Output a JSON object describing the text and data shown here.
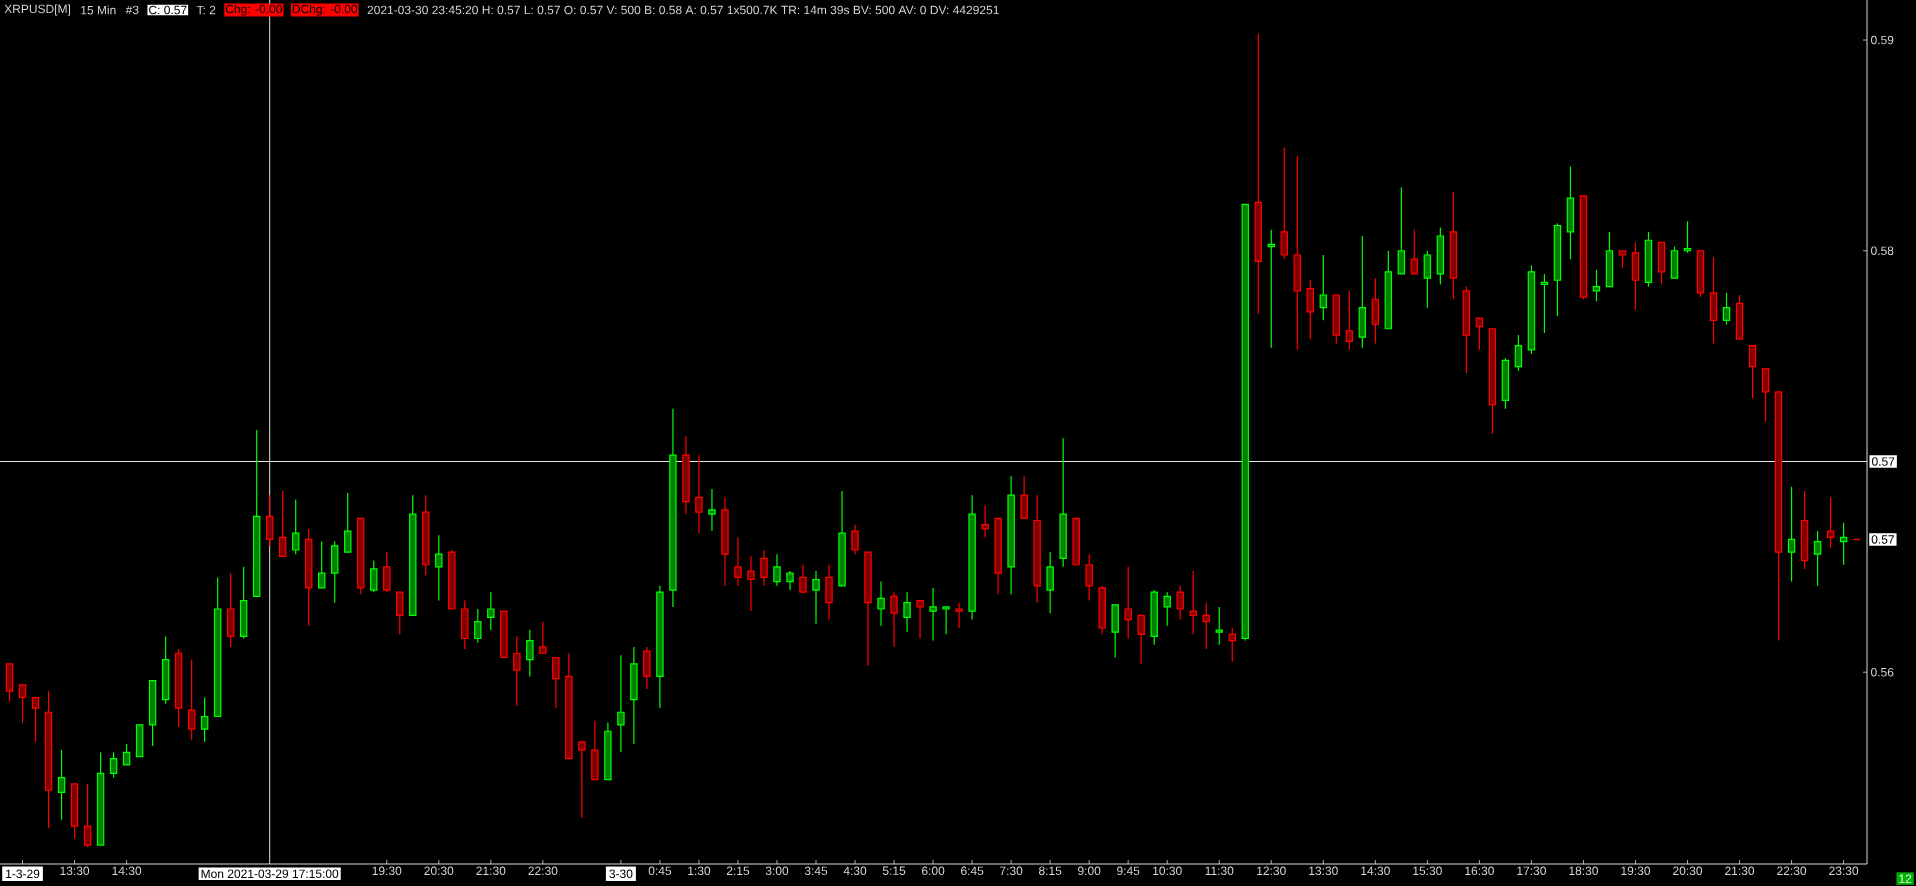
{
  "chart_data": {
    "type": "candlestick",
    "title": "XRPUSD[M]",
    "annotations": [
      "15 Min",
      "#3",
      "C: 0.57",
      "T: 2",
      "Chg: -0.00",
      "DChg: -0.00",
      "2021-03-30 23:45:20 H: 0.57 L: 0.57 O: 0.57 V: 500 B: 0.58 A: 0.57 1x500.7K TR: 14m 39s BV: 500 AV: 0 DV: 4429251",
      "12",
      {
        "text": "0.57",
        "x": "2021-03-30T23:45",
        "y": 0.5663
      }
    ],
    "x": [
      "2021-03-29T12:15",
      "2021-03-29T12:30",
      "2021-03-29T12:45",
      "2021-03-29T13:00",
      "2021-03-29T13:15",
      "2021-03-29T13:30",
      "2021-03-29T13:45",
      "2021-03-29T14:00",
      "2021-03-29T14:15",
      "2021-03-29T14:30",
      "2021-03-29T14:45",
      "2021-03-29T15:00",
      "2021-03-29T15:15",
      "2021-03-29T15:30",
      "2021-03-29T15:45",
      "2021-03-29T16:00",
      "2021-03-29T16:15",
      "2021-03-29T16:30",
      "2021-03-29T16:45",
      "2021-03-29T17:00",
      "2021-03-29T17:15",
      "2021-03-29T17:30",
      "2021-03-29T17:45",
      "2021-03-29T18:00",
      "2021-03-29T18:15",
      "2021-03-29T18:30",
      "2021-03-29T18:45",
      "2021-03-29T19:00",
      "2021-03-29T19:15",
      "2021-03-29T19:30",
      "2021-03-29T19:45",
      "2021-03-29T20:00",
      "2021-03-29T20:15",
      "2021-03-29T20:30",
      "2021-03-29T20:45",
      "2021-03-29T21:00",
      "2021-03-29T21:15",
      "2021-03-29T21:30",
      "2021-03-29T21:45",
      "2021-03-29T22:00",
      "2021-03-29T22:15",
      "2021-03-29T22:30",
      "2021-03-29T22:45",
      "2021-03-29T23:00",
      "2021-03-29T23:15",
      "2021-03-29T23:30",
      "2021-03-29T23:45",
      "2021-03-30T00:00",
      "2021-03-30T00:15",
      "2021-03-30T00:30",
      "2021-03-30T00:45",
      "2021-03-30T01:00",
      "2021-03-30T01:15",
      "2021-03-30T01:30",
      "2021-03-30T01:45",
      "2021-03-30T02:00",
      "2021-03-30T02:15",
      "2021-03-30T02:30",
      "2021-03-30T02:45",
      "2021-03-30T03:00",
      "2021-03-30T03:15",
      "2021-03-30T03:30",
      "2021-03-30T03:45",
      "2021-03-30T04:00",
      "2021-03-30T04:15",
      "2021-03-30T04:30",
      "2021-03-30T04:45",
      "2021-03-30T05:00",
      "2021-03-30T05:15",
      "2021-03-30T05:30",
      "2021-03-30T05:45",
      "2021-03-30T06:00",
      "2021-03-30T06:15",
      "2021-03-30T06:30",
      "2021-03-30T06:45",
      "2021-03-30T07:00",
      "2021-03-30T07:15",
      "2021-03-30T07:30",
      "2021-03-30T07:45",
      "2021-03-30T08:00",
      "2021-03-30T08:15",
      "2021-03-30T08:30",
      "2021-03-30T08:45",
      "2021-03-30T09:00",
      "2021-03-30T09:15",
      "2021-03-30T09:30",
      "2021-03-30T09:45",
      "2021-03-30T10:00",
      "2021-03-30T10:15",
      "2021-03-30T10:30",
      "2021-03-30T10:45",
      "2021-03-30T11:00",
      "2021-03-30T11:15",
      "2021-03-30T11:30",
      "2021-03-30T11:45",
      "2021-03-30T12:00",
      "2021-03-30T12:15",
      "2021-03-30T12:30",
      "2021-03-30T12:45",
      "2021-03-30T13:00",
      "2021-03-30T13:15",
      "2021-03-30T13:30",
      "2021-03-30T13:45",
      "2021-03-30T14:00",
      "2021-03-30T14:15",
      "2021-03-30T14:30",
      "2021-03-30T14:45",
      "2021-03-30T15:00",
      "2021-03-30T15:15",
      "2021-03-30T15:30",
      "2021-03-30T15:45",
      "2021-03-30T16:00",
      "2021-03-30T16:15",
      "2021-03-30T16:30",
      "2021-03-30T16:45",
      "2021-03-30T17:00",
      "2021-03-30T17:15",
      "2021-03-30T17:30",
      "2021-03-30T17:45",
      "2021-03-30T18:00",
      "2021-03-30T18:15",
      "2021-03-30T18:30",
      "2021-03-30T18:45",
      "2021-03-30T19:00",
      "2021-03-30T19:15",
      "2021-03-30T19:30",
      "2021-03-30T19:45",
      "2021-03-30T20:00",
      "2021-03-30T20:15",
      "2021-03-30T20:30",
      "2021-03-30T20:45",
      "2021-03-30T21:00",
      "2021-03-30T21:15",
      "2021-03-30T21:30",
      "2021-03-30T21:45",
      "2021-03-30T22:00",
      "2021-03-30T22:15",
      "2021-03-30T22:30",
      "2021-03-30T22:45",
      "2021-03-30T23:00",
      "2021-03-30T23:15",
      "2021-03-30T23:30",
      "2021-03-30T23:45"
    ],
    "ohlc": [
      [
        0.5604,
        0.5604,
        0.5586,
        0.5591
      ],
      [
        0.5594,
        0.5594,
        0.5576,
        0.5588
      ],
      [
        0.5588,
        0.5588,
        0.5567,
        0.5583
      ],
      [
        0.5581,
        0.5591,
        0.5526,
        0.5544
      ],
      [
        0.5543,
        0.5563,
        0.553,
        0.555
      ],
      [
        0.5547,
        0.5547,
        0.5521,
        0.5527
      ],
      [
        0.5527,
        0.5547,
        0.5517,
        0.5518
      ],
      [
        0.5518,
        0.5562,
        0.5518,
        0.5552
      ],
      [
        0.5552,
        0.5562,
        0.555,
        0.5559
      ],
      [
        0.5556,
        0.5566,
        0.5556,
        0.5562
      ],
      [
        0.556,
        0.5575,
        0.556,
        0.5575
      ],
      [
        0.5575,
        0.5596,
        0.5565,
        0.5596
      ],
      [
        0.5587,
        0.5617,
        0.5585,
        0.5606
      ],
      [
        0.5609,
        0.5611,
        0.5574,
        0.5583
      ],
      [
        0.5582,
        0.5606,
        0.5568,
        0.5573
      ],
      [
        0.5573,
        0.5588,
        0.5567,
        0.5579
      ],
      [
        0.5579,
        0.5645,
        0.5579,
        0.563
      ],
      [
        0.563,
        0.5647,
        0.5612,
        0.5617
      ],
      [
        0.5617,
        0.565,
        0.5616,
        0.5634
      ],
      [
        0.5636,
        0.5715,
        0.5636,
        0.5674
      ],
      [
        0.5674,
        0.5684,
        0.566,
        0.5663
      ],
      [
        0.5664,
        0.5686,
        0.5655,
        0.5655
      ],
      [
        0.5658,
        0.5682,
        0.5656,
        0.5666
      ],
      [
        0.5663,
        0.5668,
        0.5622,
        0.564
      ],
      [
        0.564,
        0.5662,
        0.564,
        0.5647
      ],
      [
        0.5647,
        0.5662,
        0.5633,
        0.566
      ],
      [
        0.5657,
        0.5685,
        0.5657,
        0.5667
      ],
      [
        0.5673,
        0.5673,
        0.5637,
        0.564
      ],
      [
        0.5639,
        0.5653,
        0.5638,
        0.5649
      ],
      [
        0.565,
        0.5657,
        0.5638,
        0.5639
      ],
      [
        0.5638,
        0.5638,
        0.5618,
        0.5627
      ],
      [
        0.5627,
        0.5684,
        0.5627,
        0.5675
      ],
      [
        0.5676,
        0.5684,
        0.5646,
        0.5651
      ],
      [
        0.565,
        0.5665,
        0.5634,
        0.5656
      ],
      [
        0.5657,
        0.5658,
        0.563,
        0.563
      ],
      [
        0.563,
        0.5634,
        0.5611,
        0.5616
      ],
      [
        0.5616,
        0.563,
        0.5614,
        0.5624
      ],
      [
        0.5626,
        0.5638,
        0.562,
        0.563
      ],
      [
        0.5629,
        0.5629,
        0.5607,
        0.5607
      ],
      [
        0.5609,
        0.5617,
        0.5584,
        0.5601
      ],
      [
        0.5606,
        0.562,
        0.5598,
        0.5615
      ],
      [
        0.5612,
        0.5624,
        0.5609,
        0.5609
      ],
      [
        0.5607,
        0.5607,
        0.5583,
        0.5597
      ],
      [
        0.5598,
        0.5609,
        0.5559,
        0.5559
      ],
      [
        0.5567,
        0.5567,
        0.5531,
        0.5563
      ],
      [
        0.5563,
        0.5577,
        0.5549,
        0.5549
      ],
      [
        0.5549,
        0.5576,
        0.5549,
        0.5572
      ],
      [
        0.5575,
        0.5608,
        0.5562,
        0.5581
      ],
      [
        0.5587,
        0.5612,
        0.5566,
        0.5604
      ],
      [
        0.561,
        0.5612,
        0.5592,
        0.5598
      ],
      [
        0.5598,
        0.5641,
        0.5583,
        0.5638
      ],
      [
        0.5639,
        0.5725,
        0.5631,
        0.5703
      ],
      [
        0.5703,
        0.5712,
        0.5675,
        0.5681
      ],
      [
        0.5683,
        0.5703,
        0.5666,
        0.5676
      ],
      [
        0.5675,
        0.5687,
        0.5667,
        0.5677
      ],
      [
        0.5677,
        0.5683,
        0.5641,
        0.5656
      ],
      [
        0.565,
        0.5664,
        0.5641,
        0.5645
      ],
      [
        0.5648,
        0.5655,
        0.5629,
        0.5644
      ],
      [
        0.5654,
        0.5658,
        0.5641,
        0.5645
      ],
      [
        0.5643,
        0.5656,
        0.5641,
        0.565
      ],
      [
        0.5643,
        0.5648,
        0.5639,
        0.5647
      ],
      [
        0.5645,
        0.5651,
        0.5638,
        0.5638
      ],
      [
        0.5639,
        0.5648,
        0.5623,
        0.5644
      ],
      [
        0.5645,
        0.5651,
        0.5625,
        0.5633
      ],
      [
        0.5641,
        0.5686,
        0.5641,
        0.5666
      ],
      [
        0.5667,
        0.567,
        0.5656,
        0.5658
      ],
      [
        0.5657,
        0.5657,
        0.5603,
        0.5633
      ],
      [
        0.563,
        0.5643,
        0.5622,
        0.5635
      ],
      [
        0.5636,
        0.5638,
        0.5612,
        0.5628
      ],
      [
        0.5626,
        0.5638,
        0.5619,
        0.5633
      ],
      [
        0.5634,
        0.5634,
        0.5616,
        0.5631
      ],
      [
        0.5629,
        0.564,
        0.5615,
        0.5631
      ],
      [
        0.563,
        0.5631,
        0.5618,
        0.5631
      ],
      [
        0.563,
        0.5633,
        0.5621,
        0.5629
      ],
      [
        0.5629,
        0.5684,
        0.5625,
        0.5675
      ],
      [
        0.567,
        0.5679,
        0.5664,
        0.5668
      ],
      [
        0.5673,
        0.5673,
        0.5637,
        0.5647
      ],
      [
        0.565,
        0.5693,
        0.5637,
        0.5684
      ],
      [
        0.5684,
        0.5693,
        0.5673,
        0.5673
      ],
      [
        0.5672,
        0.5684,
        0.5633,
        0.5641
      ],
      [
        0.5639,
        0.5657,
        0.5628,
        0.565
      ],
      [
        0.5654,
        0.5711,
        0.565,
        0.5675
      ],
      [
        0.5673,
        0.5673,
        0.5651,
        0.5651
      ],
      [
        0.5651,
        0.5656,
        0.5634,
        0.5641
      ],
      [
        0.564,
        0.5641,
        0.5618,
        0.5621
      ],
      [
        0.5619,
        0.5632,
        0.5607,
        0.5632
      ],
      [
        0.563,
        0.565,
        0.5616,
        0.5625
      ],
      [
        0.5627,
        0.5627,
        0.5604,
        0.5618
      ],
      [
        0.5617,
        0.5639,
        0.5613,
        0.5638
      ],
      [
        0.5631,
        0.5638,
        0.5622,
        0.5636
      ],
      [
        0.5638,
        0.5641,
        0.5625,
        0.563
      ],
      [
        0.5629,
        0.5648,
        0.5618,
        0.5627
      ],
      [
        0.5627,
        0.5633,
        0.5611,
        0.5624
      ],
      [
        0.5619,
        0.5631,
        0.5613,
        0.562
      ],
      [
        0.5618,
        0.5621,
        0.5605,
        0.5615
      ],
      [
        0.5616,
        0.5822,
        0.5615,
        0.5822
      ],
      [
        0.5823,
        0.5903,
        0.577,
        0.5795
      ],
      [
        0.5802,
        0.581,
        0.5754,
        0.5803
      ],
      [
        0.5809,
        0.5849,
        0.5796,
        0.5798
      ],
      [
        0.5798,
        0.5845,
        0.5753,
        0.5781
      ],
      [
        0.5782,
        0.5786,
        0.5758,
        0.5771
      ],
      [
        0.5773,
        0.5798,
        0.5767,
        0.5779
      ],
      [
        0.5779,
        0.5779,
        0.5756,
        0.576
      ],
      [
        0.5762,
        0.5781,
        0.5753,
        0.5757
      ],
      [
        0.5759,
        0.5807,
        0.5754,
        0.5773
      ],
      [
        0.5777,
        0.5787,
        0.5756,
        0.5765
      ],
      [
        0.5763,
        0.58,
        0.5763,
        0.579
      ],
      [
        0.5789,
        0.583,
        0.5789,
        0.58
      ],
      [
        0.5796,
        0.581,
        0.5789,
        0.5789
      ],
      [
        0.5787,
        0.58,
        0.5773,
        0.5798
      ],
      [
        0.5789,
        0.5811,
        0.5784,
        0.5807
      ],
      [
        0.5809,
        0.5828,
        0.5777,
        0.5787
      ],
      [
        0.5781,
        0.5783,
        0.5742,
        0.576
      ],
      [
        0.5768,
        0.5768,
        0.5753,
        0.5764
      ],
      [
        0.5763,
        0.5763,
        0.5713,
        0.5727
      ],
      [
        0.5729,
        0.5749,
        0.5725,
        0.5748
      ],
      [
        0.5745,
        0.576,
        0.5743,
        0.5755
      ],
      [
        0.5753,
        0.5793,
        0.5751,
        0.579
      ],
      [
        0.5784,
        0.5789,
        0.5761,
        0.5785
      ],
      [
        0.5786,
        0.5813,
        0.5769,
        0.5812
      ],
      [
        0.5809,
        0.584,
        0.5796,
        0.5825
      ],
      [
        0.5826,
        0.5826,
        0.5777,
        0.5778
      ],
      [
        0.5781,
        0.5791,
        0.5776,
        0.5783
      ],
      [
        0.5783,
        0.5809,
        0.5783,
        0.58
      ],
      [
        0.58,
        0.58,
        0.5792,
        0.5798
      ],
      [
        0.5799,
        0.5804,
        0.5772,
        0.5786
      ],
      [
        0.5785,
        0.5809,
        0.5783,
        0.5805
      ],
      [
        0.5804,
        0.5804,
        0.5784,
        0.579
      ],
      [
        0.5787,
        0.5802,
        0.5787,
        0.58
      ],
      [
        0.58,
        0.5814,
        0.5799,
        0.5801
      ],
      [
        0.58,
        0.58,
        0.5778,
        0.578
      ],
      [
        0.578,
        0.5797,
        0.5756,
        0.5767
      ],
      [
        0.5767,
        0.578,
        0.5765,
        0.5773
      ],
      [
        0.5775,
        0.5779,
        0.5758,
        0.5758
      ],
      [
        0.5755,
        0.5755,
        0.573,
        0.5745
      ],
      [
        0.5744,
        0.5744,
        0.5719,
        0.5733
      ],
      [
        0.5733,
        0.5733,
        0.5615,
        0.5657
      ],
      [
        0.5657,
        0.5688,
        0.5643,
        0.5663
      ],
      [
        0.5672,
        0.5686,
        0.5649,
        0.5653
      ],
      [
        0.5656,
        0.5667,
        0.5641,
        0.5662
      ],
      [
        0.5667,
        0.5683,
        0.5659,
        0.5664
      ],
      [
        0.5662,
        0.5671,
        0.5651,
        0.5664
      ],
      [
        0.5663,
        0.5663,
        0.5663,
        0.5663
      ]
    ],
    "colors": [
      "#ff0000",
      "#ff0000",
      "#ff0000",
      "#ff0000",
      "#00ff00",
      "#ff0000",
      "#ff0000",
      "#00ff00",
      "#00ff00",
      "#00ff00",
      "#00ff00",
      "#00ff00",
      "#00ff00",
      "#ff0000",
      "#ff0000",
      "#00ff00",
      "#00ff00",
      "#ff0000",
      "#00ff00",
      "#00ff00",
      "#ff0000",
      "#ff0000",
      "#00ff00",
      "#ff0000",
      "#00ff00",
      "#00ff00",
      "#00ff00",
      "#ff0000",
      "#00ff00",
      "#ff0000",
      "#ff0000",
      "#00ff00",
      "#ff0000",
      "#00ff00",
      "#ff0000",
      "#ff0000",
      "#00ff00",
      "#00ff00",
      "#ff0000",
      "#ff0000",
      "#00ff00",
      "#ff0000",
      "#ff0000",
      "#ff0000",
      "#ff0000",
      "#ff0000",
      "#00ff00",
      "#00ff00",
      "#00ff00",
      "#ff0000",
      "#00ff00",
      "#00ff00",
      "#ff0000",
      "#ff0000",
      "#00ff00",
      "#ff0000",
      "#ff0000",
      "#ff0000",
      "#ff0000",
      "#00ff00",
      "#00ff00",
      "#ff0000",
      "#00ff00",
      "#ff0000",
      "#00ff00",
      "#ff0000",
      "#ff0000",
      "#00ff00",
      "#ff0000",
      "#00ff00",
      "#ff0000",
      "#00ff00",
      "#00ff00",
      "#ff0000",
      "#00ff00",
      "#ff0000",
      "#ff0000",
      "#00ff00",
      "#ff0000",
      "#ff0000",
      "#00ff00",
      "#00ff00",
      "#ff0000",
      "#ff0000",
      "#ff0000",
      "#00ff00",
      "#ff0000",
      "#ff0000",
      "#00ff00",
      "#00ff00",
      "#ff0000",
      "#ff0000",
      "#ff0000",
      "#00ff00",
      "#ff0000",
      "#00ff00",
      "#ff0000",
      "#00ff00",
      "#ff0000",
      "#ff0000",
      "#ff0000",
      "#00ff00",
      "#ff0000",
      "#ff0000",
      "#00ff00",
      "#ff0000",
      "#00ff00",
      "#00ff00",
      "#ff0000",
      "#00ff00",
      "#00ff00",
      "#ff0000",
      "#ff0000",
      "#ff0000",
      "#ff0000",
      "#00ff00",
      "#00ff00",
      "#00ff00",
      "#00ff00",
      "#00ff00",
      "#00ff00",
      "#ff0000",
      "#00ff00",
      "#00ff00",
      "#ff0000",
      "#ff0000",
      "#00ff00",
      "#ff0000",
      "#00ff00",
      "#00ff00",
      "#ff0000",
      "#ff0000",
      "#00ff00",
      "#ff0000",
      "#ff0000",
      "#ff0000",
      "#ff0000",
      "#00ff00",
      "#ff0000",
      "#00ff00",
      "#ff0000",
      "#00ff00",
      "#ff0000"
    ],
    "xlim": [
      "2021-03-29T12:04",
      "2021-03-30T23:57"
    ],
    "ylim": [
      0.5509,
      0.5919
    ],
    "xticks": [
      {
        "value": "2021-03-29T12:30",
        "label": "1-3-29"
      },
      {
        "value": "2021-03-29T13:30",
        "label": "13:30"
      },
      {
        "value": "2021-03-29T14:30",
        "label": "14:30"
      },
      {
        "value": "2021-03-29T19:30",
        "label": "19:30"
      },
      {
        "value": "2021-03-29T20:30",
        "label": "20:30"
      },
      {
        "value": "2021-03-29T21:30",
        "label": "21:30"
      },
      {
        "value": "2021-03-29T22:30",
        "label": "22:30"
      },
      {
        "value": "2021-03-30T00:00",
        "label": "3-30"
      },
      {
        "value": "2021-03-30T00:45",
        "label": "0:45"
      },
      {
        "value": "2021-03-30T01:30",
        "label": "1:30"
      },
      {
        "value": "2021-03-30T02:15",
        "label": "2:15"
      },
      {
        "value": "2021-03-30T03:00",
        "label": "3:00"
      },
      {
        "value": "2021-03-30T03:45",
        "label": "3:45"
      },
      {
        "value": "2021-03-30T04:30",
        "label": "4:30"
      },
      {
        "value": "2021-03-30T05:15",
        "label": "5:15"
      },
      {
        "value": "2021-03-30T06:00",
        "label": "6:00"
      },
      {
        "value": "2021-03-30T06:45",
        "label": "6:45"
      },
      {
        "value": "2021-03-30T07:30",
        "label": "7:30"
      },
      {
        "value": "2021-03-30T08:15",
        "label": "8:15"
      },
      {
        "value": "2021-03-30T09:00",
        "label": "9:00"
      },
      {
        "value": "2021-03-30T09:45",
        "label": "9:45"
      },
      {
        "value": "2021-03-30T10:30",
        "label": "10:30"
      },
      {
        "value": "2021-03-30T11:30",
        "label": "11:30"
      },
      {
        "value": "2021-03-30T12:30",
        "label": "12:30"
      },
      {
        "value": "2021-03-30T13:30",
        "label": "13:30"
      },
      {
        "value": "2021-03-30T14:30",
        "label": "14:30"
      },
      {
        "value": "2021-03-30T15:30",
        "label": "15:30"
      },
      {
        "value": "2021-03-30T16:30",
        "label": "16:30"
      },
      {
        "value": "2021-03-30T17:30",
        "label": "17:30"
      },
      {
        "value": "2021-03-30T18:30",
        "label": "18:30"
      },
      {
        "value": "2021-03-30T19:30",
        "label": "19:30"
      },
      {
        "value": "2021-03-30T20:30",
        "label": "20:30"
      },
      {
        "value": "2021-03-30T21:30",
        "label": "21:30"
      },
      {
        "value": "2021-03-30T22:30",
        "label": "22:30"
      },
      {
        "value": "2021-03-30T23:30",
        "label": "23:30"
      }
    ],
    "yticks": [
      0.56,
      0.58,
      0.59
    ],
    "ref_lines": [
      {
        "axis": "y",
        "value": 0.57,
        "label": "0.57",
        "color": "#e6e6e6"
      },
      {
        "axis": "x",
        "value": "2021-03-29T17:15",
        "label": "Mon 2021-03-29 17:15:00",
        "color": "#e6e6e6"
      }
    ]
  }
}
